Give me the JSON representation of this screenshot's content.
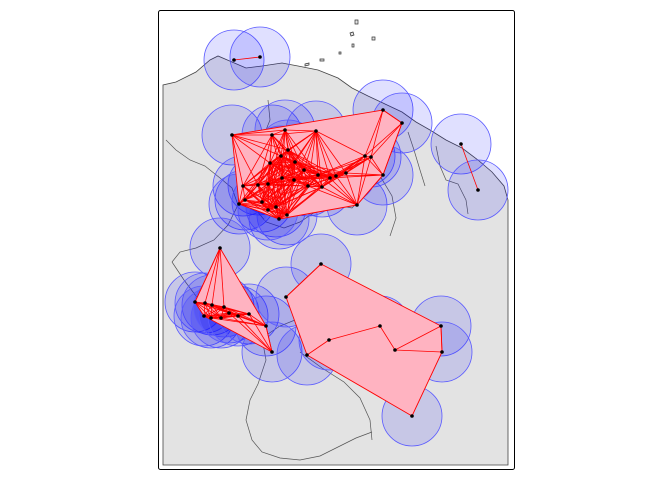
{
  "colors": {
    "land": "#e3e3e3",
    "border": "#555555",
    "buffer_fill": "rgba(0,0,255,0.12)",
    "buffer_stroke": "#5a5aff",
    "network_fill": "#ffb3c1",
    "network_edge": "#ff0000",
    "node": "#000000"
  },
  "map": {
    "clusters": [
      {
        "id": "north-coast",
        "points": [
          [
            234,
            60
          ],
          [
            260,
            57
          ]
        ]
      },
      {
        "id": "central-north",
        "points": [
          [
            232,
            135
          ],
          [
            272,
            135
          ],
          [
            285,
            130
          ],
          [
            316,
            131
          ],
          [
            270,
            163
          ],
          [
            281,
            156
          ],
          [
            288,
            150
          ],
          [
            295,
            162
          ],
          [
            304,
            170
          ],
          [
            318,
            175
          ],
          [
            336,
            176
          ],
          [
            346,
            173
          ],
          [
            243,
            186
          ],
          [
            258,
            185
          ],
          [
            268,
            184
          ],
          [
            282,
            178
          ],
          [
            294,
            180
          ],
          [
            308,
            186
          ],
          [
            322,
            187
          ],
          [
            330,
            178
          ],
          [
            245,
            200
          ],
          [
            262,
            202
          ],
          [
            276,
            207
          ],
          [
            287,
            215
          ],
          [
            279,
            219
          ],
          [
            268,
            210
          ],
          [
            239,
            204
          ],
          [
            357,
            205
          ],
          [
            365,
            156
          ],
          [
            371,
            157
          ],
          [
            383,
            110
          ],
          [
            402,
            123
          ],
          [
            383,
            175
          ]
        ]
      },
      {
        "id": "east",
        "points": [
          [
            461,
            144
          ],
          [
            478,
            190
          ]
        ]
      },
      {
        "id": "west-southwest",
        "points": [
          [
            220,
            248
          ],
          [
            195,
            302
          ],
          [
            205,
            303
          ],
          [
            212,
            305
          ],
          [
            204,
            316
          ],
          [
            211,
            318
          ],
          [
            221,
            318
          ],
          [
            224,
            307
          ],
          [
            229,
            313
          ],
          [
            238,
            316
          ],
          [
            249,
            314
          ],
          [
            266,
            326
          ],
          [
            272,
            352
          ]
        ]
      },
      {
        "id": "south-center",
        "points": [
          [
            286,
            297
          ],
          [
            321,
            264
          ],
          [
            307,
            355
          ],
          [
            329,
            340
          ],
          [
            380,
            326
          ],
          [
            395,
            350
          ],
          [
            441,
            326
          ],
          [
            442,
            352
          ],
          [
            412,
            416
          ]
        ]
      }
    ]
  }
}
